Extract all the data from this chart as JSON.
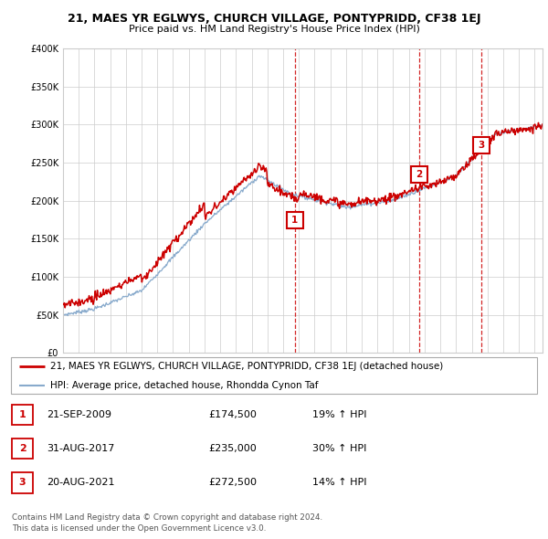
{
  "title": "21, MAES YR EGLWYS, CHURCH VILLAGE, PONTYPRIDD, CF38 1EJ",
  "subtitle": "Price paid vs. HM Land Registry's House Price Index (HPI)",
  "legend_line1": "21, MAES YR EGLWYS, CHURCH VILLAGE, PONTYPRIDD, CF38 1EJ (detached house)",
  "legend_line2": "HPI: Average price, detached house, Rhondda Cynon Taf",
  "transactions": [
    {
      "num": 1,
      "date": "21-SEP-2009",
      "price": 174500,
      "change": "19% ↑ HPI"
    },
    {
      "num": 2,
      "date": "31-AUG-2017",
      "price": 235000,
      "change": "30% ↑ HPI"
    },
    {
      "num": 3,
      "date": "20-AUG-2021",
      "price": 272500,
      "change": "14% ↑ HPI"
    }
  ],
  "transaction_dates_decimal": [
    2009.73,
    2017.67,
    2021.63
  ],
  "transaction_prices": [
    174500,
    235000,
    272500
  ],
  "footer": "Contains HM Land Registry data © Crown copyright and database right 2024.\nThis data is licensed under the Open Government Licence v3.0.",
  "hpi_color": "#88aacc",
  "price_color": "#cc0000",
  "marker_box_color": "#cc0000",
  "vline_color": "#cc0000",
  "ylim": [
    0,
    400000
  ],
  "yticks": [
    0,
    50000,
    100000,
    150000,
    200000,
    250000,
    300000,
    350000,
    400000
  ],
  "xstart": 1995.0,
  "xend": 2025.5,
  "background_color": "#ffffff",
  "grid_color": "#cccccc"
}
